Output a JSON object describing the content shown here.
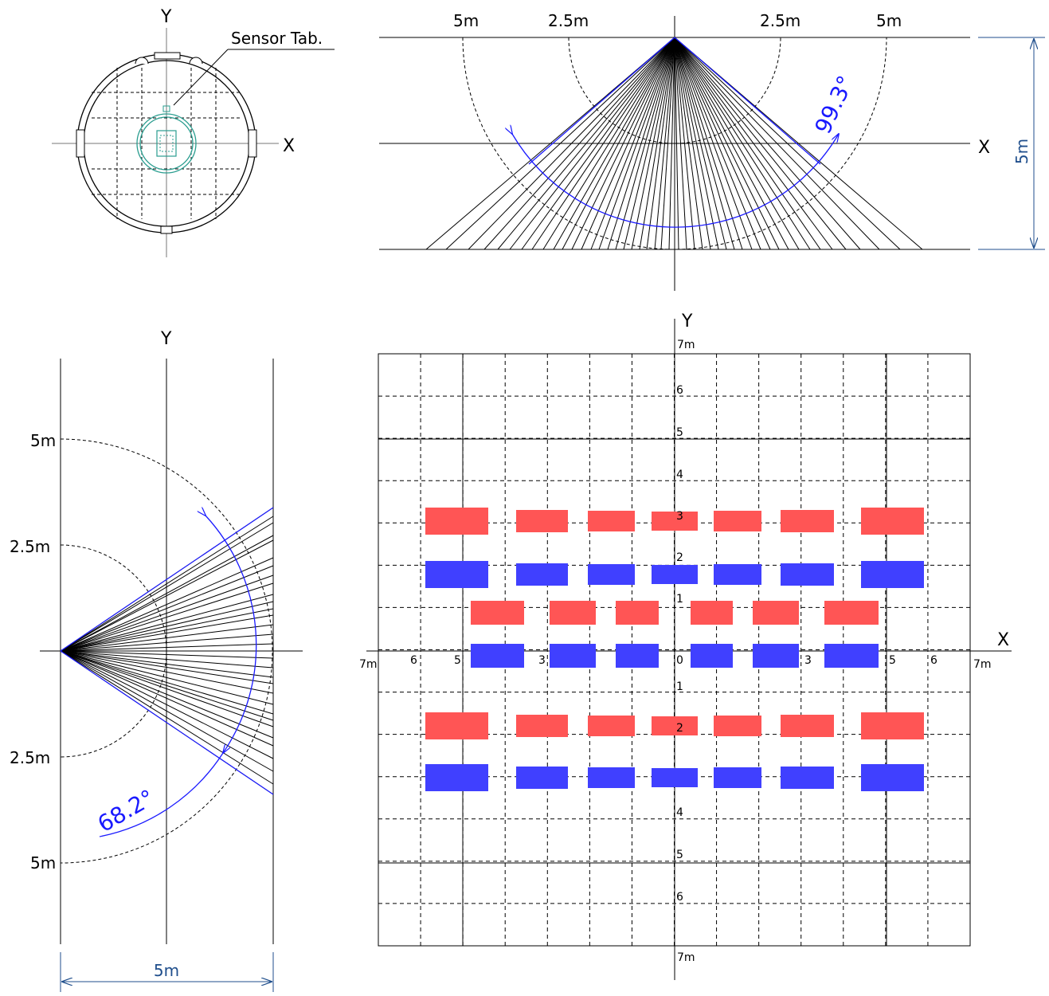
{
  "sensor_view": {
    "axis_x": "X",
    "axis_y": "Y",
    "sensor_tab_label": "Sensor Tab."
  },
  "side_view": {
    "labels_top": [
      "5m",
      "2.5m",
      "2.5m",
      "5m"
    ],
    "axis_x": "X",
    "angle": "99.3°",
    "height_dim": "5m"
  },
  "front_view": {
    "axis_y": "Y",
    "labels_left": [
      "5m",
      "2.5m",
      "2.5m",
      "5m"
    ],
    "angle": "68.2°",
    "width_dim": "5m"
  },
  "floor_map": {
    "axis_x": "X",
    "axis_y": "Y",
    "x_ticks": [
      "7m",
      "6",
      "5",
      "3",
      "0",
      "3",
      "5",
      "6",
      "7m"
    ],
    "y_ticks_top": [
      "7m",
      "6",
      "5",
      "4",
      "3",
      "2",
      "1"
    ],
    "y_ticks_bottom": [
      "1",
      "2",
      "4",
      "5",
      "6",
      "7m"
    ],
    "colors": {
      "red_zone": "#ff5555",
      "blue_zone": "#4040ff"
    }
  }
}
